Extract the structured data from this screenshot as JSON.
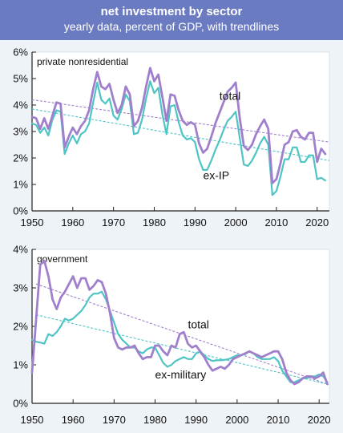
{
  "header": {
    "title": "net investment by sector",
    "subtitle": "yearly data, percent of GDP, with trendlines"
  },
  "colors": {
    "header_bg": "#6b7bc2",
    "total": "#a07fcc",
    "excl": "#4fc4c4",
    "panel_bg": "#ffffff",
    "page_bg": "#eef3f7"
  },
  "chart_data": [
    {
      "type": "line",
      "title": "private nonresidential",
      "xlabel": "",
      "ylabel": "",
      "xlim": [
        1950,
        2023
      ],
      "ylim": [
        0,
        6
      ],
      "x_ticks": [
        1950,
        1960,
        1970,
        1980,
        1990,
        2000,
        2010,
        2020
      ],
      "y_ticks": [
        0,
        1,
        2,
        3,
        4,
        5,
        6
      ],
      "y_tick_labels": [
        "0%",
        "1%",
        "2%",
        "3%",
        "4%",
        "5%",
        "6%"
      ],
      "grid": false,
      "x": [
        1950,
        1951,
        1952,
        1953,
        1954,
        1955,
        1956,
        1957,
        1958,
        1959,
        1960,
        1961,
        1962,
        1963,
        1964,
        1965,
        1966,
        1967,
        1968,
        1969,
        1970,
        1971,
        1972,
        1973,
        1974,
        1975,
        1976,
        1977,
        1978,
        1979,
        1980,
        1981,
        1982,
        1983,
        1984,
        1985,
        1986,
        1987,
        1988,
        1989,
        1990,
        1991,
        1992,
        1993,
        1994,
        1995,
        1996,
        1997,
        1998,
        1999,
        2000,
        2001,
        2002,
        2003,
        2004,
        2005,
        2006,
        2007,
        2008,
        2009,
        2010,
        2011,
        2012,
        2013,
        2014,
        2015,
        2016,
        2017,
        2018,
        2019,
        2020,
        2021,
        2022
      ],
      "series": [
        {
          "name": "total",
          "label_position": [
            1996,
            4.2
          ],
          "values": [
            3.55,
            3.5,
            3.1,
            3.5,
            3.1,
            3.6,
            4.1,
            4.05,
            2.4,
            2.8,
            3.15,
            2.9,
            3.2,
            3.4,
            3.8,
            4.6,
            5.25,
            4.7,
            4.6,
            4.8,
            4.2,
            3.7,
            4.0,
            4.7,
            4.4,
            3.2,
            3.4,
            3.9,
            4.7,
            5.4,
            4.9,
            5.15,
            4.3,
            3.4,
            4.4,
            4.35,
            3.8,
            3.4,
            3.25,
            3.35,
            3.25,
            2.55,
            2.2,
            2.35,
            2.8,
            3.3,
            3.7,
            4.1,
            4.5,
            4.65,
            4.85,
            3.5,
            2.45,
            2.3,
            2.5,
            2.9,
            3.2,
            3.45,
            3.1,
            1.05,
            1.2,
            1.8,
            2.5,
            2.6,
            3.0,
            3.05,
            2.8,
            2.7,
            2.95,
            2.95,
            1.85,
            2.35,
            2.15
          ]
        },
        {
          "name": "ex-IP",
          "label_position": [
            1992,
            1.2
          ],
          "values": [
            3.3,
            3.25,
            2.95,
            3.15,
            2.85,
            3.45,
            3.8,
            3.75,
            2.15,
            2.55,
            2.85,
            2.55,
            2.9,
            3.0,
            3.3,
            4.1,
            4.85,
            4.2,
            4.05,
            4.25,
            3.6,
            3.45,
            3.85,
            4.4,
            4.15,
            2.9,
            2.95,
            3.45,
            4.25,
            4.9,
            4.45,
            4.65,
            3.65,
            2.9,
            3.95,
            4.0,
            3.35,
            2.85,
            2.7,
            2.75,
            2.6,
            1.95,
            1.55,
            1.55,
            1.9,
            2.3,
            2.65,
            3.05,
            3.4,
            3.55,
            3.75,
            2.75,
            1.75,
            1.7,
            1.9,
            2.2,
            2.55,
            2.8,
            2.5,
            0.6,
            0.75,
            1.3,
            1.95,
            1.95,
            2.4,
            2.4,
            1.85,
            1.85,
            2.1,
            2.1,
            1.2,
            1.25,
            1.15
          ]
        }
      ],
      "trendlines": [
        {
          "series": "total",
          "start": [
            1950,
            4.2
          ],
          "end": [
            2023,
            2.6
          ]
        },
        {
          "series": "ex-IP",
          "start": [
            1950,
            3.85
          ],
          "end": [
            2023,
            1.9
          ]
        }
      ]
    },
    {
      "type": "line",
      "title": "government",
      "xlabel": "",
      "ylabel": "",
      "xlim": [
        1950,
        2022.5
      ],
      "ylim": [
        0,
        4
      ],
      "x_ticks": [
        1950,
        1960,
        1970,
        1980,
        1990,
        2000,
        2010,
        2020
      ],
      "y_ticks": [
        0,
        1,
        2,
        3,
        4
      ],
      "y_tick_labels": [
        "0%",
        "1%",
        "2%",
        "3%",
        "4%"
      ],
      "grid": false,
      "x": [
        1950,
        1951,
        1952,
        1953,
        1954,
        1955,
        1956,
        1957,
        1958,
        1959,
        1960,
        1961,
        1962,
        1963,
        1964,
        1965,
        1966,
        1967,
        1968,
        1969,
        1970,
        1971,
        1972,
        1973,
        1974,
        1975,
        1976,
        1977,
        1978,
        1979,
        1980,
        1981,
        1982,
        1983,
        1984,
        1985,
        1986,
        1987,
        1988,
        1989,
        1990,
        1991,
        1992,
        1993,
        1994,
        1995,
        1996,
        1997,
        1998,
        1999,
        2000,
        2001,
        2002,
        2003,
        2004,
        2005,
        2006,
        2007,
        2008,
        2009,
        2010,
        2011,
        2012,
        2013,
        2014,
        2015,
        2016,
        2017,
        2018,
        2019,
        2020,
        2021,
        2022
      ],
      "series": [
        {
          "name": "total",
          "label_position": [
            1988,
            1.95
          ],
          "values": [
            0.8,
            2.2,
            3.6,
            3.7,
            3.3,
            2.7,
            2.45,
            2.75,
            2.9,
            3.1,
            3.3,
            3.0,
            3.25,
            3.25,
            2.95,
            3.05,
            3.2,
            3.15,
            2.85,
            2.35,
            1.7,
            1.45,
            1.4,
            1.45,
            1.45,
            1.5,
            1.3,
            1.15,
            1.2,
            1.2,
            1.5,
            1.5,
            1.35,
            1.25,
            1.5,
            1.45,
            1.8,
            1.85,
            1.55,
            1.45,
            1.5,
            1.35,
            1.2,
            1.0,
            0.85,
            0.9,
            0.95,
            0.9,
            1.0,
            1.15,
            1.2,
            1.25,
            1.3,
            1.35,
            1.3,
            1.25,
            1.2,
            1.25,
            1.3,
            1.35,
            1.35,
            1.15,
            0.8,
            0.6,
            0.5,
            0.55,
            0.65,
            0.7,
            0.7,
            0.65,
            0.7,
            0.8,
            0.5
          ]
        },
        {
          "name": "ex-military",
          "label_position": [
            1980,
            0.65
          ],
          "values": [
            1.65,
            1.6,
            1.58,
            1.55,
            1.8,
            1.75,
            1.85,
            2.0,
            2.2,
            2.15,
            2.2,
            2.3,
            2.4,
            2.55,
            2.75,
            2.85,
            2.85,
            2.9,
            2.7,
            2.4,
            2.1,
            1.8,
            1.65,
            1.55,
            1.45,
            1.45,
            1.35,
            1.3,
            1.4,
            1.45,
            1.45,
            1.25,
            1.05,
            0.95,
            1.0,
            1.1,
            1.15,
            1.2,
            1.15,
            1.15,
            1.3,
            1.35,
            1.25,
            1.15,
            1.1,
            1.12,
            1.12,
            1.13,
            1.15,
            1.2,
            1.25,
            1.25,
            1.28,
            1.35,
            1.3,
            1.2,
            1.15,
            1.15,
            1.15,
            1.2,
            1.1,
            0.85,
            0.7,
            0.55,
            0.55,
            0.6,
            0.65,
            0.65,
            0.7,
            0.7,
            0.75,
            0.7,
            0.55
          ]
        }
      ],
      "trendlines": [
        {
          "series": "total",
          "start": [
            1951,
            3.1
          ],
          "end": [
            2022,
            0.5
          ]
        },
        {
          "series": "ex-military",
          "start": [
            1951,
            2.3
          ],
          "end": [
            2022,
            0.5
          ]
        }
      ]
    }
  ]
}
